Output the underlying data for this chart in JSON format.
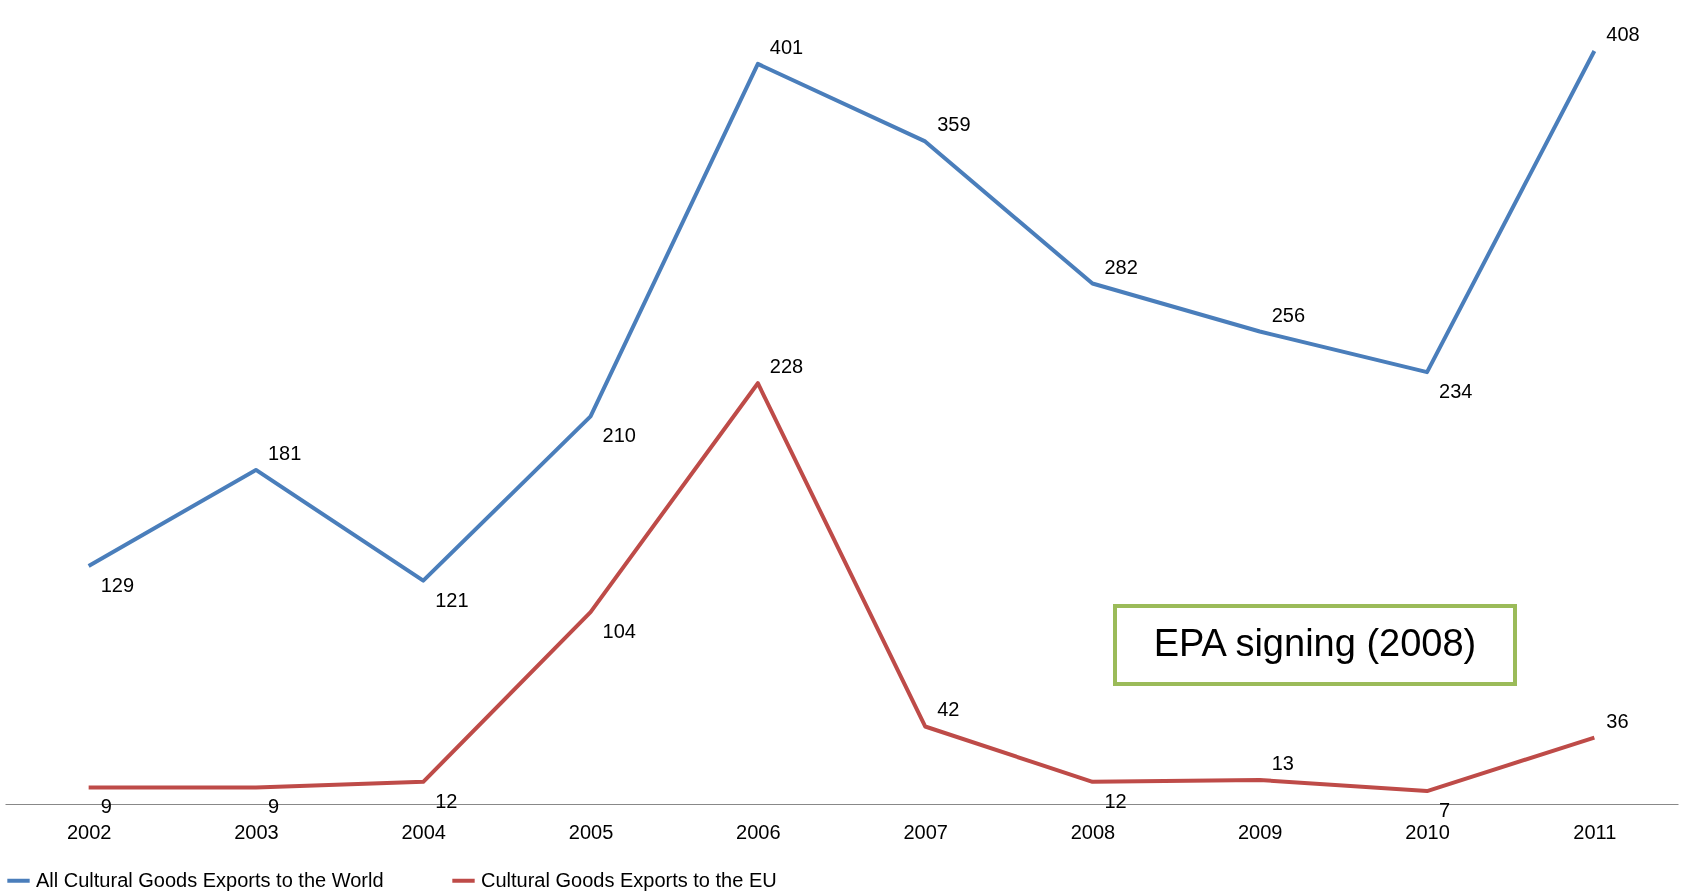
{
  "chart_data": {
    "type": "line",
    "categories": [
      "2002",
      "2003",
      "2004",
      "2005",
      "2006",
      "2007",
      "2008",
      "2009",
      "2010",
      "2011"
    ],
    "series": [
      {
        "name": "All Cultural Goods Exports to the World",
        "color": "#4a7ebb",
        "values": [
          129,
          181,
          121,
          210,
          401,
          359,
          282,
          256,
          234,
          408
        ]
      },
      {
        "name": "Cultural Goods Exports to the EU",
        "color": "#be4b48",
        "values": [
          9,
          9,
          12,
          104,
          228,
          42,
          12,
          13,
          7,
          36
        ]
      }
    ],
    "data_labels": true,
    "legend": "bottom",
    "grid": false,
    "marker": "none",
    "line_style": "solid",
    "annotations": [
      "EPA signing (2008)"
    ]
  }
}
